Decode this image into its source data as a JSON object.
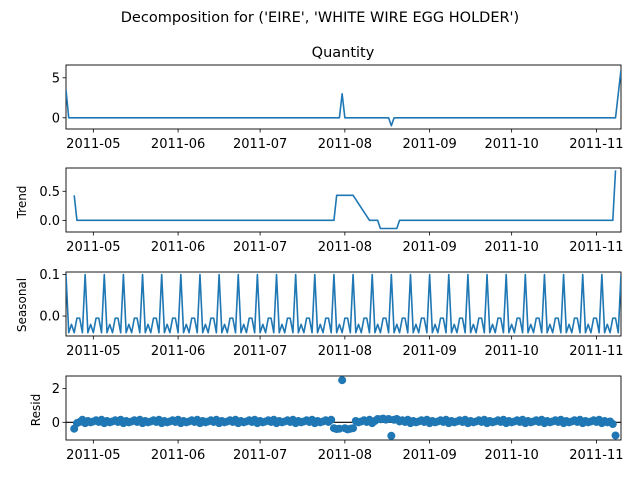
{
  "figure": {
    "title": "Decomposition for ('EIRE', 'WHITE WIRE EGG HOLDER')"
  },
  "colors": {
    "line": "#1f77b4",
    "axis": "#000000"
  },
  "chart_data": [
    {
      "type": "line",
      "panel": "observed",
      "title": "Quantity",
      "ylabel": "",
      "xlim": [
        "2011-04-21",
        "2011-11-10"
      ],
      "ylim": [
        -1.4,
        6.6
      ],
      "yticks": [
        0,
        5
      ],
      "xtick_labels": [
        "2011-05",
        "2011-06",
        "2011-07",
        "2011-08",
        "2011-09",
        "2011-10",
        "2011-11"
      ],
      "series": [
        {
          "x": [
            "2011-04-21",
            "2011-04-22",
            "2011-07-30",
            "2011-07-31",
            "2011-08-01",
            "2011-08-17",
            "2011-08-18",
            "2011-08-19",
            "2011-11-08",
            "2011-11-10"
          ],
          "y": [
            3.5,
            0,
            0,
            3,
            0,
            0,
            -1,
            0,
            0,
            6
          ]
        }
      ]
    },
    {
      "type": "line",
      "panel": "trend",
      "title": "",
      "ylabel": "Trend",
      "xlim": [
        "2011-04-21",
        "2011-11-10"
      ],
      "ylim": [
        -0.2,
        0.9
      ],
      "yticks": [
        0.0,
        0.5
      ],
      "yticklabels": [
        "0.0",
        "0.5"
      ],
      "xtick_labels": [
        "2011-05",
        "2011-06",
        "2011-07",
        "2011-08",
        "2011-09",
        "2011-10",
        "2011-11"
      ],
      "series": [
        {
          "x": [
            "2011-04-24",
            "2011-04-25",
            "2011-07-28",
            "2011-07-29",
            "2011-08-04",
            "2011-08-10",
            "2011-08-13",
            "2011-08-14",
            "2011-08-20",
            "2011-08-21",
            "2011-11-07",
            "2011-11-08"
          ],
          "y": [
            0.43,
            0,
            0,
            0.43,
            0.43,
            0,
            0,
            -0.14,
            -0.14,
            0,
            0,
            0.86
          ]
        }
      ]
    },
    {
      "type": "line",
      "panel": "seasonal",
      "title": "",
      "ylabel": "Seasonal",
      "xlim": [
        "2011-04-21",
        "2011-11-10"
      ],
      "ylim": [
        -0.048,
        0.106
      ],
      "yticks": [
        0.0,
        0.1
      ],
      "yticklabels": [
        "0.0",
        "0.1"
      ],
      "xtick_labels": [
        "2011-05",
        "2011-06",
        "2011-07",
        "2011-08",
        "2011-09",
        "2011-10",
        "2011-11"
      ],
      "period_days": 7,
      "start": "2011-04-21",
      "pattern": [
        0.1,
        -0.04,
        -0.02,
        -0.04,
        -0.005,
        -0.005,
        -0.04
      ]
    },
    {
      "type": "scatter",
      "panel": "resid",
      "title": "",
      "ylabel": "Resid",
      "xlim": [
        "2011-04-21",
        "2011-11-10"
      ],
      "ylim": [
        -1.05,
        2.75
      ],
      "yticks": [
        0,
        2
      ],
      "baseline": 0,
      "xtick_labels": [
        "2011-05",
        "2011-06",
        "2011-07",
        "2011-08",
        "2011-09",
        "2011-10",
        "2011-11"
      ],
      "base_pattern": [
        0.05,
        0.12,
        0.02,
        0.15,
        -0.05,
        0.08,
        0.0
      ],
      "points_special": [
        {
          "x": "2011-04-24",
          "y": -0.38
        },
        {
          "x": "2011-04-25",
          "y": -0.05
        },
        {
          "x": "2011-07-28",
          "y": -0.35
        },
        {
          "x": "2011-07-29",
          "y": -0.4
        },
        {
          "x": "2011-07-30",
          "y": -0.38
        },
        {
          "x": "2011-07-31",
          "y": 2.5
        },
        {
          "x": "2011-08-01",
          "y": -0.35
        },
        {
          "x": "2011-08-02",
          "y": -0.42
        },
        {
          "x": "2011-08-03",
          "y": -0.38
        },
        {
          "x": "2011-08-04",
          "y": -0.35
        },
        {
          "x": "2011-08-13",
          "y": 0.2
        },
        {
          "x": "2011-08-14",
          "y": 0.18
        },
        {
          "x": "2011-08-15",
          "y": 0.22
        },
        {
          "x": "2011-08-16",
          "y": 0.16
        },
        {
          "x": "2011-08-17",
          "y": 0.2
        },
        {
          "x": "2011-08-18",
          "y": -0.8
        },
        {
          "x": "2011-08-19",
          "y": 0.15
        },
        {
          "x": "2011-08-20",
          "y": 0.2
        },
        {
          "x": "2011-11-07",
          "y": -0.1
        },
        {
          "x": "2011-11-08",
          "y": -0.78
        }
      ]
    }
  ]
}
